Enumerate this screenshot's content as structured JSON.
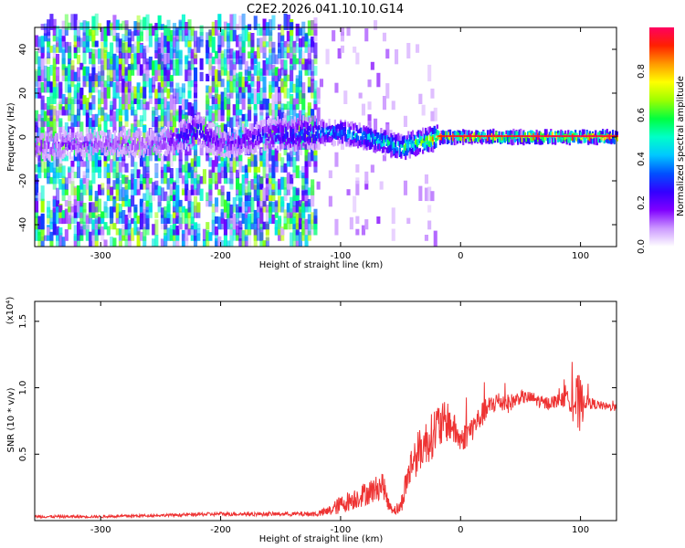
{
  "title": "C2E2.2026.041.10.10.G14",
  "chart_data": [
    {
      "type": "heatmap",
      "xlabel": "Height of straight line (km)",
      "ylabel": "Frequency (Hz)",
      "xlim": [
        -355,
        130
      ],
      "ylim": [
        -50,
        50
      ],
      "xticks": [
        -300,
        -200,
        -100,
        0,
        100
      ],
      "yticks": [
        -40,
        -20,
        0,
        20,
        40
      ],
      "xtick_labels": [
        "-300",
        "-200",
        "-100",
        "0",
        "100"
      ],
      "ytick_labels": [
        "-40",
        "-20",
        "0",
        "20",
        "40"
      ],
      "colorbar": {
        "label": "Normalized spectral amplitude",
        "range": [
          0,
          1
        ],
        "ticks": [
          0.0,
          0.2,
          0.4,
          0.6,
          0.8
        ],
        "tick_labels": [
          "0.0",
          "0.2",
          "0.4",
          "0.6",
          "0.8"
        ],
        "colormap": [
          "#ffffff",
          "#cc99ff",
          "#8000ff",
          "#3300ff",
          "#0050ff",
          "#00c8ff",
          "#00ffc8",
          "#00ff40",
          "#9cff00",
          "#ffff00",
          "#ff9a00",
          "#ff2000",
          "#ff0060"
        ]
      },
      "grid": false,
      "ridge": {
        "x": [
          -355,
          -300,
          -250,
          -220,
          -200,
          -160,
          -140,
          -120,
          -100,
          -80,
          -60,
          -50,
          -40,
          -30,
          -20,
          -10,
          0,
          50,
          100,
          130
        ],
        "freq": [
          -4,
          -3,
          -3,
          3,
          -3,
          1,
          1,
          2,
          2,
          0,
          -3,
          -5,
          -3,
          -2,
          0,
          0,
          0,
          0,
          0,
          0
        ],
        "amplitude": [
          0.18,
          0.15,
          0.16,
          0.35,
          0.18,
          0.3,
          0.35,
          0.42,
          0.45,
          0.5,
          0.55,
          0.6,
          0.7,
          0.75,
          0.9,
          0.95,
          0.95,
          0.95,
          0.98,
          0.95
        ]
      }
    },
    {
      "type": "line",
      "xlabel": "Height of straight line (km)",
      "ylabel": "SNR (10 * v/v)",
      "multiplier_label": "(x10⁴)",
      "xlim": [
        -355,
        130
      ],
      "ylim": [
        0,
        1.65
      ],
      "xticks": [
        -300,
        -200,
        -100,
        0,
        100
      ],
      "yticks": [
        0.5,
        1.0,
        1.5
      ],
      "xtick_labels": [
        "-300",
        "-200",
        "-100",
        "0",
        "100"
      ],
      "ytick_labels": [
        "0.5",
        "1.0",
        "1.5"
      ],
      "grid": false,
      "series": [
        {
          "color": "#ee3333",
          "x": [
            -355,
            -300,
            -250,
            -200,
            -150,
            -120,
            -110,
            -100,
            -90,
            -80,
            -70,
            -65,
            -60,
            -55,
            -50,
            -45,
            -40,
            -35,
            -30,
            -25,
            -20,
            -15,
            -10,
            -5,
            0,
            10,
            20,
            30,
            40,
            50,
            60,
            70,
            80,
            90,
            95,
            100,
            103,
            110,
            120,
            130
          ],
          "y": [
            0.03,
            0.03,
            0.04,
            0.05,
            0.05,
            0.05,
            0.07,
            0.12,
            0.16,
            0.2,
            0.24,
            0.28,
            0.12,
            0.08,
            0.1,
            0.3,
            0.45,
            0.52,
            0.58,
            0.62,
            0.7,
            0.72,
            0.75,
            0.68,
            0.6,
            0.7,
            0.82,
            0.9,
            0.88,
            0.93,
            0.92,
            0.88,
            0.9,
            0.92,
            0.9,
            0.85,
            0.9,
            0.88,
            0.86,
            0.85
          ],
          "noise": [
            0.01,
            0.01,
            0.01,
            0.015,
            0.015,
            0.02,
            0.04,
            0.07,
            0.08,
            0.09,
            0.1,
            0.1,
            0.05,
            0.04,
            0.06,
            0.12,
            0.16,
            0.16,
            0.17,
            0.17,
            0.2,
            0.17,
            0.15,
            0.12,
            0.1,
            0.1,
            0.09,
            0.08,
            0.07,
            0.05,
            0.05,
            0.05,
            0.05,
            0.06,
            0.2,
            0.25,
            0.06,
            0.04,
            0.03,
            0.03
          ]
        }
      ]
    }
  ]
}
